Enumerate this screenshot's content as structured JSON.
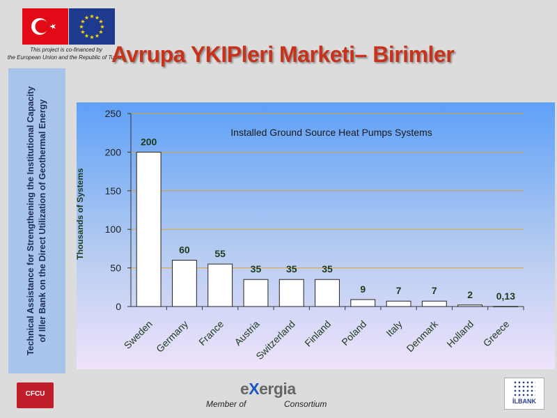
{
  "slide": {
    "title": "Avrupa YKIPleri Marketi– Birimler",
    "cofinanced_line1": "This project is co-financed by",
    "cofinanced_line2": "the European Union and the Republic of Turkey",
    "side_text_line1": "Technical Assistance for Strengthening the Institutional Capacity",
    "side_text_line2": "of Iller Bank on the Direct  Utilization of Geothermal Energy"
  },
  "footer": {
    "cfcu_label": "CFCU",
    "exergia_pre": "e",
    "exergia_x": "X",
    "exergia_post": "ergia",
    "member_of": "Member of",
    "consortium": "Consortium",
    "ilbank_label": "İLBANK"
  },
  "colors": {
    "bar_fill": "#ffffff",
    "gridline": "#d9a23a",
    "title_red": "#c8321a"
  },
  "chart_data": {
    "type": "bar",
    "title": "Installed Ground Source Heat Pumps Systems",
    "ylabel": "Thousands of Systems",
    "xlabel": "",
    "ylim": [
      0,
      250
    ],
    "yticks": [
      0,
      50,
      100,
      150,
      200,
      250
    ],
    "grid": true,
    "categories": [
      "Sweden",
      "Germany",
      "France",
      "Austria",
      "Switzerland",
      "Finland",
      "Poland",
      "Italy",
      "Denmark",
      "Holland",
      "Greece"
    ],
    "values": [
      200,
      60,
      55,
      35,
      35,
      35,
      9,
      7,
      7,
      2,
      0.13
    ],
    "value_labels": [
      "200",
      "60",
      "55",
      "35",
      "35",
      "35",
      "9",
      "7",
      "7",
      "2",
      "0,13"
    ]
  }
}
